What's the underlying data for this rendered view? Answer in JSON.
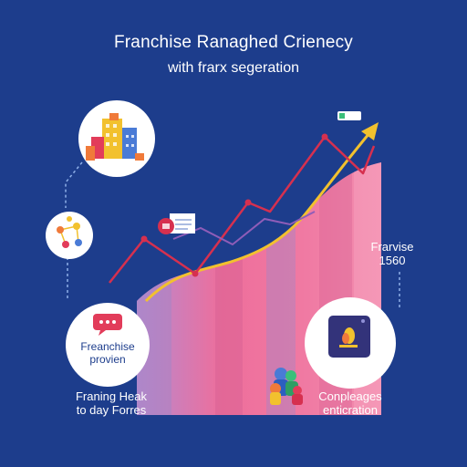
{
  "title": "Franchise Ranaghed Crienecy",
  "subtitle": "with frarx segeration",
  "colors": {
    "background": "#1d3d8c",
    "area_pink": "#ee6e9b",
    "area_violet": "#a785c4",
    "line_red": "#d6304f",
    "arrow_yellow": "#f2c12e",
    "white": "#ffffff",
    "dark_tile": "#33337a"
  },
  "callouts": {
    "side_label_line1": "Frarvise",
    "side_label_line2": "1560",
    "left_circle_line1": "Freanchise",
    "left_circle_line2": "provien",
    "right_circle_line1": "Conpleages",
    "right_circle_line2": "enticration",
    "bottom_left_line1": "Franing Heak",
    "bottom_left_line2": "to day Forres"
  },
  "icons": {
    "top_circle": "city-buildings-icon",
    "small_circle": "network-nodes-icon",
    "left_circle": "chat-bubble-icon",
    "right_circle": "app-tile-icon",
    "tag": "price-tag-icon",
    "flag": "flag-icon",
    "people": "people-group-icon"
  }
}
